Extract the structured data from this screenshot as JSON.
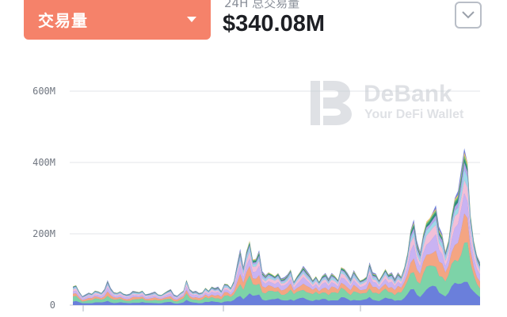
{
  "header": {
    "metric_select_label": "交易量",
    "stat_caption": "24H 总交易量",
    "stat_value": "$340.08M"
  },
  "watermark": {
    "name": "DeBank",
    "tagline": "Your DeFi Wallet"
  },
  "colors": {
    "accent": "#f5826a",
    "series": [
      "#6a7fdb",
      "#7dd3a8",
      "#f4a582",
      "#c9b3f2",
      "#f2c0d8",
      "#9fd9e8",
      "#b5a4e6",
      "#2f8c7a",
      "#6cc46e",
      "#f6d365",
      "#e07b91"
    ]
  },
  "chart_data": {
    "type": "area",
    "stacked": true,
    "ylim": [
      0,
      600
    ],
    "yunit": "M",
    "yticks": [
      "600M",
      "400M",
      "200M",
      "0"
    ],
    "grid": true,
    "x": [
      0,
      1,
      2,
      3,
      4,
      5,
      6,
      7,
      8,
      9,
      10,
      11,
      12,
      13,
      14,
      15,
      16,
      17,
      18,
      19,
      20,
      21,
      22,
      23,
      24,
      25,
      26,
      27,
      28,
      29,
      30,
      31,
      32,
      33,
      34,
      35,
      36,
      37,
      38,
      39,
      40,
      41,
      42,
      43,
      44,
      45,
      46,
      47,
      48,
      49,
      50,
      51,
      52,
      53,
      54,
      55,
      56,
      57,
      58,
      59,
      60,
      61,
      62,
      63,
      64,
      65,
      66,
      67,
      68,
      69,
      70,
      71,
      72,
      73,
      74,
      75,
      76,
      77,
      78,
      79,
      80,
      81,
      82,
      83,
      84,
      85,
      86,
      87,
      88,
      89,
      90,
      91,
      92,
      93,
      94,
      95,
      96,
      97,
      98,
      99,
      100,
      101,
      102,
      103,
      104,
      105,
      106,
      107,
      108,
      109,
      110,
      111,
      112,
      113,
      114,
      115,
      116,
      117,
      118,
      119,
      120,
      121,
      122,
      123,
      124,
      125,
      126,
      127,
      128,
      129
    ],
    "total": [
      52,
      55,
      38,
      25,
      30,
      35,
      32,
      40,
      38,
      34,
      45,
      70,
      48,
      36,
      34,
      38,
      32,
      30,
      32,
      40,
      38,
      36,
      40,
      30,
      32,
      35,
      38,
      30,
      28,
      34,
      40,
      45,
      30,
      26,
      34,
      40,
      70,
      45,
      38,
      40,
      34,
      36,
      48,
      40,
      52,
      48,
      52,
      40,
      60,
      58,
      48,
      68,
      115,
      158,
      108,
      152,
      178,
      126,
      130,
      154,
      95,
      84,
      92,
      86,
      80,
      90,
      75,
      78,
      86,
      100,
      65,
      80,
      94,
      110,
      98,
      86,
      70,
      80,
      65,
      82,
      90,
      75,
      90,
      82,
      70,
      105,
      102,
      90,
      75,
      98,
      82,
      68,
      72,
      80,
      120,
      92,
      88,
      70,
      84,
      100,
      86,
      92,
      75,
      92,
      80,
      105,
      145,
      210,
      240,
      180,
      150,
      200,
      230,
      240,
      260,
      280,
      220,
      200,
      150,
      180,
      250,
      300,
      320,
      380,
      440,
      400,
      250,
      180,
      140,
      120
    ],
    "shares": [
      0.18,
      0.24,
      0.16,
      0.14,
      0.1,
      0.06,
      0.04,
      0.03,
      0.02,
      0.015,
      0.005
    ]
  }
}
